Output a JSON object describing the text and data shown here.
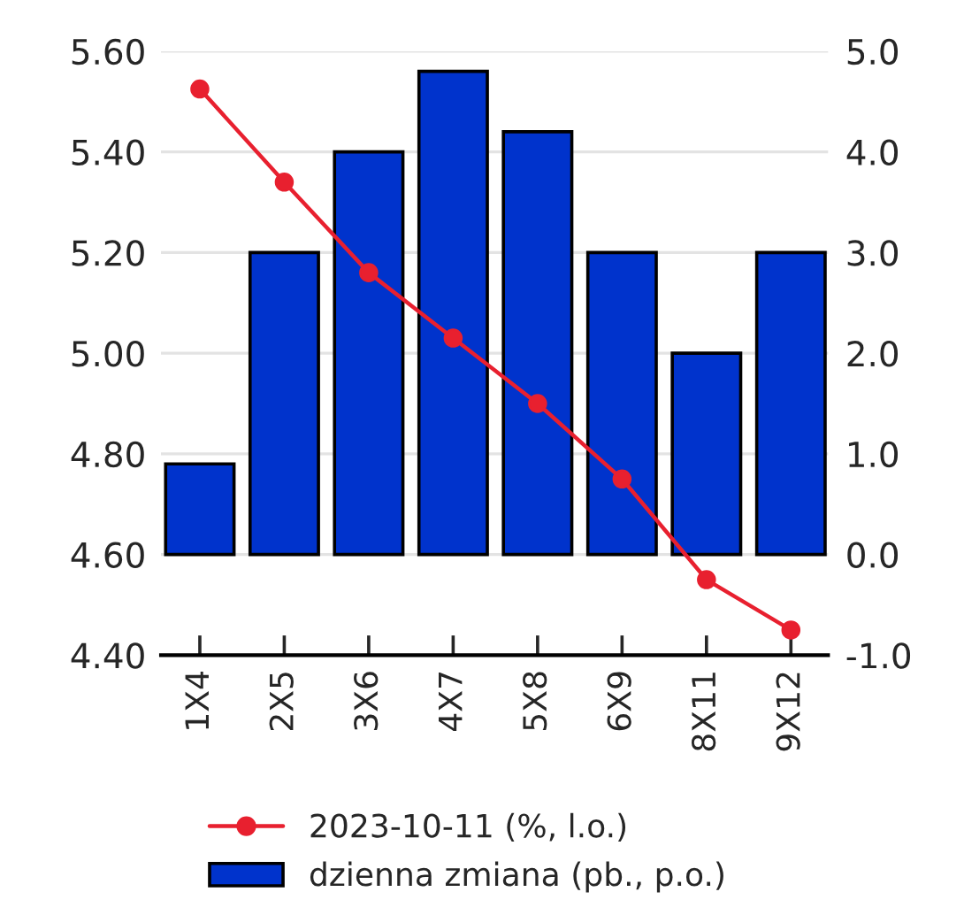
{
  "chart_data": {
    "type": "bar",
    "categories": [
      "1X4",
      "2X5",
      "3X6",
      "4X7",
      "5X8",
      "6X9",
      "8X11",
      "9X12"
    ],
    "series": [
      {
        "name": "2023-10-11 (%, l.o.)",
        "type": "line",
        "axis": "y",
        "color": "#e8202f",
        "values": [
          5.525,
          5.34,
          5.16,
          5.03,
          4.9,
          4.75,
          4.55,
          4.45
        ]
      },
      {
        "name": "dzienna zmiana (pb., p.o.)",
        "axis": "y2",
        "color": "#0033cc",
        "values": [
          0.9,
          3.0,
          4.0,
          4.8,
          4.2,
          3.0,
          2.0,
          3.0
        ]
      }
    ],
    "ylim": [
      4.4,
      5.6
    ],
    "yticks": [
      {
        "value": 4.4,
        "label": "4.40"
      },
      {
        "value": 4.6,
        "label": "4.60"
      },
      {
        "value": 4.8,
        "label": "4.80"
      },
      {
        "value": 5.0,
        "label": "5.00"
      },
      {
        "value": 5.2,
        "label": "5.20"
      },
      {
        "value": 5.4,
        "label": "5.40"
      },
      {
        "value": 5.6,
        "label": "5.60"
      }
    ],
    "y2lim": [
      -1,
      5
    ],
    "y2ticks": [
      {
        "value": -1,
        "label": "-1.0"
      },
      {
        "value": 0,
        "label": "0.0"
      },
      {
        "value": 1,
        "label": "1.0"
      },
      {
        "value": 2,
        "label": "2.0"
      },
      {
        "value": 3,
        "label": "3.0"
      },
      {
        "value": 4,
        "label": "4.0"
      },
      {
        "value": 5,
        "label": "5.0"
      }
    ],
    "grid": "y",
    "legend": "bottom",
    "marker": "circle",
    "line_style": "solid"
  }
}
